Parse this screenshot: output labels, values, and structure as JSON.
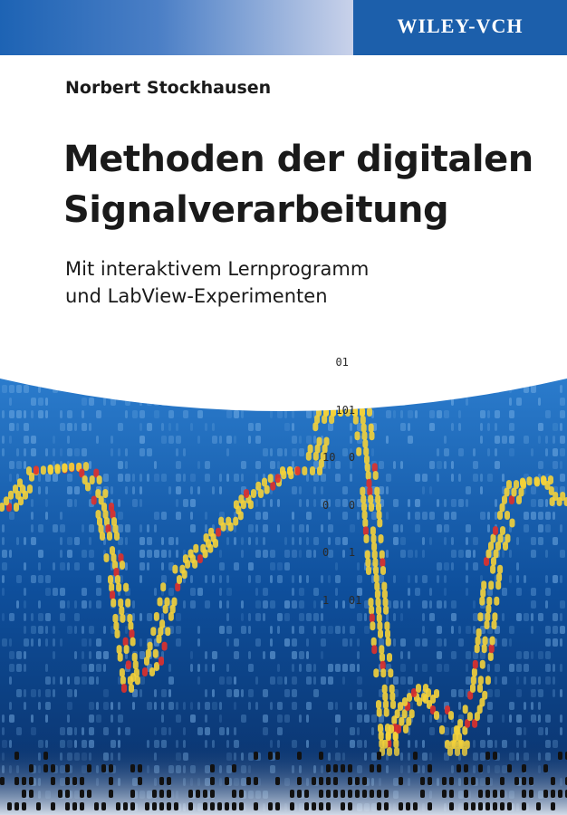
{
  "publisher": "WILEY-VCH",
  "author": "Norbert Stockhausen",
  "title": [
    "Methoden der digitalen",
    "Signalverarbeitung"
  ],
  "subtitle": [
    "Mit interaktivem Lernprogramm",
    "und LabView-Experimenten"
  ],
  "binary_top": [
    "  01",
    "  101",
    "10  0",
    "0   0",
    "0   1",
    "1   01"
  ]
}
